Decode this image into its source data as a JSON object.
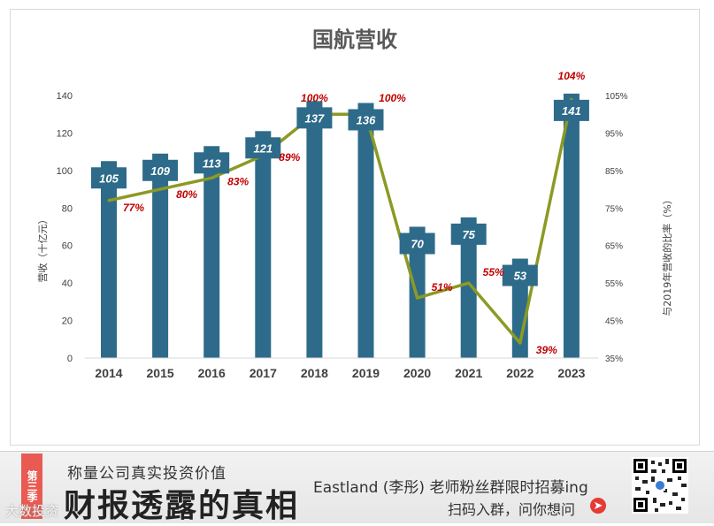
{
  "chart_data": {
    "type": "bar",
    "title": "国航营收",
    "categories": [
      "2014",
      "2015",
      "2016",
      "2017",
      "2018",
      "2019",
      "2020",
      "2021",
      "2022",
      "2023"
    ],
    "series": [
      {
        "name": "营收（十亿元）",
        "type": "bar",
        "axis": "left",
        "values": [
          105,
          109,
          113,
          121,
          137,
          136,
          70,
          75,
          53,
          141
        ]
      },
      {
        "name": "与2019年营收的比率（%）",
        "type": "line",
        "axis": "right",
        "values": [
          77,
          80,
          83,
          89,
          100,
          100,
          51,
          55,
          39,
          104
        ]
      }
    ],
    "value_labels": [
      "105",
      "109",
      "113",
      "121",
      "137",
      "136",
      "70",
      "75",
      "53",
      "141"
    ],
    "pct_labels": [
      "77%",
      "80%",
      "83%",
      "89%",
      "100%",
      "100%",
      "51%",
      "55%",
      "39%",
      "104%"
    ],
    "ylabel": "营收（十亿元）",
    "y2label": "与2019年营收的比率（%）",
    "ylim": [
      0,
      140
    ],
    "yticks": [
      "0",
      "20",
      "40",
      "60",
      "80",
      "100",
      "120",
      "140"
    ],
    "y2lim": [
      35,
      105
    ],
    "y2ticks": [
      "35%",
      "45%",
      "55%",
      "65%",
      "75%",
      "85%",
      "95%",
      "105%"
    ],
    "grid": false,
    "colors": {
      "bar": "#2e6b8a",
      "line": "#8c9a24",
      "pct_text": "#c00000"
    }
  },
  "banner": {
    "season": "第三季",
    "subtitle": "称量公司真实投资价值",
    "main_title": "财报透露的真相",
    "promo": "Eastland (李彤) 老师粉丝群限时招募ing",
    "cta": "扫码入群，问你想问",
    "arrow_icon": "arrow-right-icon",
    "watermark": "大数投资"
  }
}
